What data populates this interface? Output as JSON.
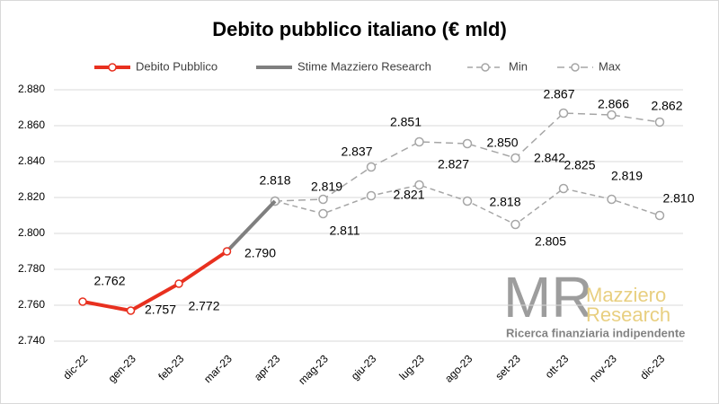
{
  "chart_data": {
    "type": "line",
    "title": "Debito pubblico italiano (€ mld)",
    "categories": [
      "dic-22",
      "gen-23",
      "feb-23",
      "mar-23",
      "apr-23",
      "mag-23",
      "giu-23",
      "lug-23",
      "ago-23",
      "set-23",
      "ott-23",
      "nov-23",
      "dic-23"
    ],
    "series": [
      {
        "name": "Debito Pubblico",
        "color": "#e8301f",
        "values": [
          2762,
          2757,
          2772,
          2790,
          null,
          null,
          null,
          null,
          null,
          null,
          null,
          null,
          null
        ],
        "value_labels": [
          "2.762",
          "2.757",
          "2.772",
          "2.790",
          null,
          null,
          null,
          null,
          null,
          null,
          null,
          null,
          null
        ]
      },
      {
        "name": "Stime Mazziero Research",
        "color": "#7f7f7f",
        "values": [
          null,
          null,
          null,
          2790,
          2818,
          null,
          null,
          null,
          null,
          null,
          null,
          null,
          null
        ],
        "value_labels": [
          null,
          null,
          null,
          null,
          "2.818",
          null,
          null,
          null,
          null,
          null,
          null,
          null,
          null
        ]
      },
      {
        "name": "Min",
        "color": "#a6a6a6",
        "values": [
          null,
          null,
          null,
          null,
          2818,
          2811,
          2821,
          2827,
          2818,
          2805,
          2825,
          2819,
          2810
        ],
        "value_labels": [
          null,
          null,
          null,
          null,
          null,
          "2.811",
          "2.821",
          "2.827",
          "2.818",
          "2.805",
          "2.825",
          "2.819",
          "2.810"
        ]
      },
      {
        "name": "Max",
        "color": "#a6a6a6",
        "values": [
          null,
          null,
          null,
          null,
          2818,
          2819,
          2837,
          2851,
          2850,
          2842,
          2867,
          2866,
          2862
        ],
        "value_labels": [
          null,
          null,
          null,
          null,
          null,
          "2.819",
          "2.837",
          "2.851",
          "2.850",
          "2.842",
          "2.867",
          "2.866",
          "2.862"
        ]
      }
    ],
    "ylim": [
      2740,
      2880
    ],
    "yticks": [
      {
        "value": 2740,
        "label": "2.740"
      },
      {
        "value": 2760,
        "label": "2.760"
      },
      {
        "value": 2780,
        "label": "2.780"
      },
      {
        "value": 2800,
        "label": "2.800"
      },
      {
        "value": 2820,
        "label": "2.820"
      },
      {
        "value": 2840,
        "label": "2.840"
      },
      {
        "value": 2860,
        "label": "2.860"
      },
      {
        "value": 2880,
        "label": "2.880"
      }
    ],
    "grid": true,
    "legend": "top",
    "watermark": {
      "logo": "MR",
      "name1": "Mazziero",
      "name2": "Research",
      "tagline": "Ricerca finanziaria indipendente"
    }
  }
}
